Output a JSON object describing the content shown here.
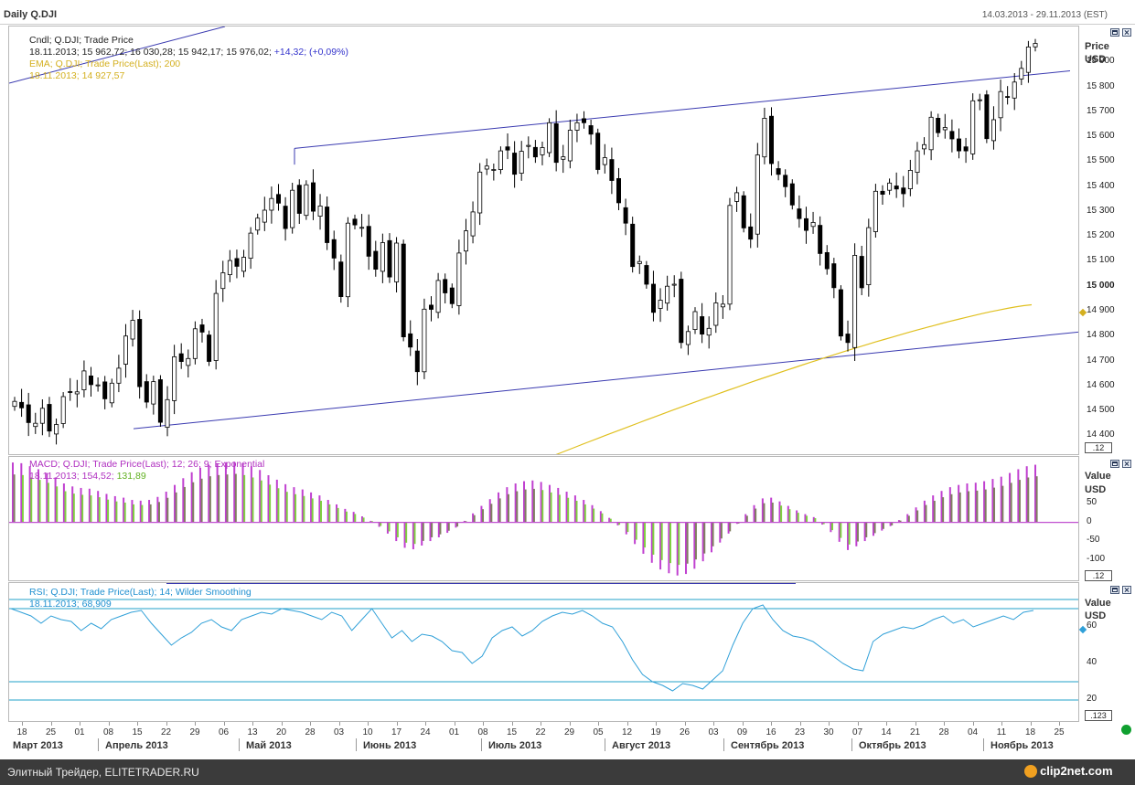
{
  "header": {
    "title": "Daily Q.DJI",
    "date_range": "14.03.2013 - 29.11.2013 (EST)"
  },
  "price_panel": {
    "legend_line1": "Cndl; Q.DJI; Trade Price",
    "legend_values": "18.11.2013; 15 962,72; 16 030,28; 15 942,17; 15 976,02;",
    "legend_change": "+14,32; (+0,09%)",
    "ema_label": "EMA; Q.DJI; Trade Price(Last);  200",
    "ema_value": "18.11.2013; 14 927,57",
    "axis_title": "Price",
    "axis_unit": "USD",
    "axis_labels": [
      "15 900",
      "15 800",
      "15 700",
      "15 600",
      "15 500",
      "15 400",
      "15 300",
      "15 200",
      "15 100",
      "15 000",
      "14 900",
      "14 800",
      "14 700",
      "14 600",
      "14 500",
      "14 400"
    ],
    "scale_box": ".12"
  },
  "macd_panel": {
    "legend_line1": "MACD; Q.DJI; Trade Price(Last);  12; 26; 9; Exponential",
    "legend_date": "18.11.2013;",
    "legend_macd": "154,52;",
    "legend_signal": "131,89",
    "axis_title": "Value",
    "axis_unit": "USD",
    "axis_labels": [
      "50",
      "0",
      "-50",
      "-100"
    ],
    "scale_box": ".12"
  },
  "rsi_panel": {
    "legend_line1": "RSI; Q.DJI; Trade Price(Last);  14; Wilder Smoothing",
    "legend_value": "18.11.2013; 68,909",
    "axis_title": "Value",
    "axis_unit": "USD",
    "axis_labels": [
      "60",
      "40",
      "20"
    ],
    "scale_box": ".123"
  },
  "time_axis": {
    "day_labels": [
      "18",
      "25",
      "01",
      "08",
      "15",
      "22",
      "29",
      "06",
      "13",
      "20",
      "28",
      "03",
      "10",
      "17",
      "24",
      "01",
      "08",
      "15",
      "22",
      "29",
      "05",
      "12",
      "19",
      "26",
      "03",
      "09",
      "16",
      "23",
      "30",
      "07",
      "14",
      "21",
      "28",
      "04",
      "11",
      "18",
      "25"
    ],
    "month_labels": [
      "Март 2013",
      "Апрель 2013",
      "Май 2013",
      "Июнь 2013",
      "Июль 2013",
      "Август 2013",
      "Сентябрь 2013",
      "Октябрь 2013",
      "Ноябрь 2013"
    ]
  },
  "footer": {
    "text": "Элитный Трейдер, ELITETRADER.RU",
    "logo": "clip2net.com"
  },
  "colors": {
    "candle": "#000000",
    "trendline": "#3a3ab0",
    "ema": "#e0c020",
    "macd_pos": "#c040d0",
    "macd_neg_shade": "#808060",
    "macd_signal": "#80d040",
    "rsi": "#30a0d8",
    "rsi_levels": "#20a0c8"
  },
  "chart_data": [
    {
      "type": "candlestick",
      "title": "Daily Q.DJI",
      "ylabel": "Price USD",
      "ylim": [
        14350,
        16000
      ],
      "x_start": "2013-03-14",
      "last": {
        "date": "18.11.2013",
        "open": 15962.72,
        "high": 16030.28,
        "low": 15942.17,
        "close": 15976.02,
        "change": 14.32
      },
      "closes": [
        14540,
        14514,
        14455,
        14452,
        14512,
        14421,
        14447,
        14559,
        14578,
        14578,
        14662,
        14607,
        14606,
        14550,
        14613,
        14673,
        14802,
        14865,
        14599,
        14537,
        14619,
        14456,
        14547,
        14719,
        14700,
        14712,
        14831,
        14818,
        14700,
        14973,
        15056,
        15105,
        15082,
        15118,
        15215,
        15275,
        15307,
        15354,
        15335,
        15233,
        15387,
        15294,
        15409,
        15303,
        15324,
        15177,
        15115,
        14960,
        15255,
        15248,
        15238,
        15122,
        15070,
        15177,
        15039,
        15175,
        14799,
        14758,
        14659,
        14910,
        14909,
        15025,
        14975,
        14932,
        15135,
        15224,
        15300,
        15460,
        15484,
        15470,
        15545,
        15548,
        15451,
        15543,
        15567,
        15521,
        15558,
        15658,
        15499,
        15521,
        15628,
        15658,
        15658,
        15612,
        15470,
        15518,
        15426,
        15337,
        15255,
        15081,
        15101,
        15010,
        14897,
        14946,
        15002,
        15010,
        14776,
        14820,
        14900,
        14810,
        14833,
        14935,
        14930,
        15326,
        15377,
        15236,
        15191,
        15529,
        15676,
        15494,
        15451,
        15401,
        15328,
        15273,
        15226,
        15258,
        15133,
        15072,
        14996,
        14802,
        14776,
        15126,
        14996,
        15237,
        15383,
        15371,
        15416,
        15392,
        15373,
        15467,
        15545,
        15570,
        15680,
        15618,
        15639,
        15593,
        15545,
        15545,
        15746,
        15750,
        15594,
        15670,
        15783,
        15761,
        15821,
        15876,
        15962,
        15976
      ],
      "ema200": {
        "date": "18.11.2013",
        "value": 14927.57
      },
      "trendlines": "upper and lower parallel channel lines"
    },
    {
      "type": "bar",
      "title": "MACD; Q.DJI; Trade Price(Last); 12; 26; 9; Exponential",
      "ylabel": "Value USD",
      "ylim": [
        -150,
        170
      ],
      "last": {
        "date": "18.11.2013",
        "macd": 154.52,
        "signal": 131.89
      },
      "values": [
        160,
        158,
        150,
        142,
        132,
        120,
        104,
        96,
        92,
        90,
        84,
        76,
        70,
        66,
        60,
        58,
        60,
        68,
        82,
        100,
        118,
        134,
        146,
        154,
        158,
        160,
        162,
        158,
        150,
        140,
        126,
        114,
        102,
        94,
        88,
        80,
        72,
        60,
        48,
        36,
        28,
        16,
        4,
        -12,
        -30,
        -50,
        -68,
        -72,
        -62,
        -50,
        -40,
        -28,
        -14,
        4,
        24,
        44,
        62,
        80,
        94,
        104,
        110,
        112,
        108,
        100,
        92,
        82,
        72,
        60,
        46,
        30,
        12,
        -8,
        -32,
        -58,
        -84,
        -108,
        -126,
        -136,
        -142,
        -138,
        -124,
        -104,
        -80,
        -54,
        -30,
        -4,
        22,
        46,
        64,
        66,
        56,
        44,
        32,
        22,
        14,
        -6,
        -26,
        -52,
        -74,
        -64,
        -50,
        -36,
        -22,
        -10,
        6,
        22,
        40,
        58,
        72,
        84,
        94,
        100,
        104,
        106,
        110,
        116,
        122,
        132,
        142,
        150,
        154
      ],
      "signal_series": "green shaded portion where MACD falls below signal"
    },
    {
      "type": "line",
      "title": "RSI; Q.DJI; Trade Price(Last); 14; Wilder Smoothing",
      "ylabel": "Value USD",
      "ylim": [
        10,
        80
      ],
      "levels": [
        70,
        30,
        20
      ],
      "last": {
        "date": "18.11.2013",
        "value": 68.909
      },
      "values": [
        70,
        68,
        66,
        62,
        66,
        64,
        63,
        58,
        62,
        59,
        64,
        66,
        68,
        69,
        62,
        56,
        50,
        54,
        57,
        62,
        64,
        60,
        58,
        64,
        66,
        68,
        67,
        70,
        69,
        68,
        66,
        64,
        68,
        66,
        58,
        64,
        70,
        62,
        54,
        58,
        52,
        56,
        55,
        52,
        47,
        46,
        40,
        44,
        54,
        58,
        60,
        55,
        58,
        63,
        66,
        68,
        67,
        69,
        66,
        62,
        60,
        52,
        42,
        34,
        30,
        28,
        25,
        29,
        28,
        26,
        31,
        36,
        50,
        62,
        70,
        72,
        64,
        58,
        55,
        54,
        52,
        48,
        44,
        40,
        37,
        36,
        52,
        56,
        58,
        60,
        59,
        61,
        64,
        66,
        62,
        64,
        60,
        62,
        64,
        66,
        64,
        68,
        69
      ]
    }
  ]
}
